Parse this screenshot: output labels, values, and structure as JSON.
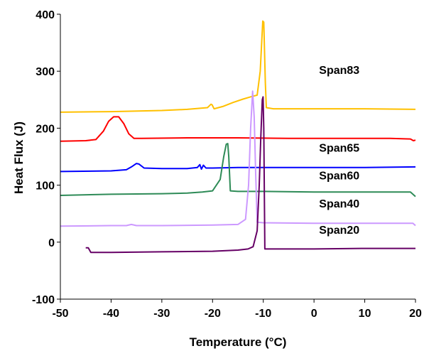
{
  "chart_data": {
    "type": "line",
    "xlabel": "Temperature (°C)",
    "ylabel": "Heat Flux  (J)",
    "xlim": [
      -50,
      20
    ],
    "ylim": [
      -100,
      400
    ],
    "xticks": [
      -50,
      -40,
      -30,
      -20,
      -10,
      0,
      10,
      20
    ],
    "yticks": [
      -100,
      0,
      100,
      200,
      300,
      400
    ],
    "grid": false,
    "legend": "labels-beside-curves",
    "series": [
      {
        "name": "Span83",
        "color": "#FFC000",
        "points": [
          [
            -50,
            228
          ],
          [
            -40,
            229
          ],
          [
            -30,
            231
          ],
          [
            -25,
            233
          ],
          [
            -21,
            236
          ],
          [
            -20.3,
            242
          ],
          [
            -20.1,
            241
          ],
          [
            -19.7,
            234
          ],
          [
            -18,
            238
          ],
          [
            -16,
            245
          ],
          [
            -14,
            251
          ],
          [
            -12.5,
            255
          ],
          [
            -11.2,
            258
          ],
          [
            -10.6,
            300
          ],
          [
            -10.1,
            388
          ],
          [
            -9.9,
            386
          ],
          [
            -9.6,
            280
          ],
          [
            -9.4,
            236
          ],
          [
            -8,
            234
          ],
          [
            0,
            234
          ],
          [
            10,
            234
          ],
          [
            20,
            233
          ]
        ]
      },
      {
        "name": "",
        "color": "#FF0000",
        "points": [
          [
            -50,
            177
          ],
          [
            -45,
            178
          ],
          [
            -43,
            180
          ],
          [
            -41.5,
            195
          ],
          [
            -40.5,
            212
          ],
          [
            -39.5,
            220
          ],
          [
            -38.5,
            220
          ],
          [
            -37.5,
            208
          ],
          [
            -36.5,
            190
          ],
          [
            -35.5,
            182
          ],
          [
            -34,
            182
          ],
          [
            -25,
            183
          ],
          [
            -15,
            183
          ],
          [
            -5,
            182
          ],
          [
            5,
            182
          ],
          [
            15,
            182
          ],
          [
            19,
            181
          ],
          [
            19.6,
            178
          ],
          [
            20,
            179
          ]
        ]
      },
      {
        "name": "Span65",
        "color": "#0000FF",
        "points": [
          [
            -50,
            124
          ],
          [
            -40,
            125
          ],
          [
            -37,
            127
          ],
          [
            -36,
            132
          ],
          [
            -35,
            138
          ],
          [
            -34.5,
            137
          ],
          [
            -33.5,
            130
          ],
          [
            -30,
            129
          ],
          [
            -25,
            129
          ],
          [
            -23,
            131
          ],
          [
            -22.5,
            136
          ],
          [
            -22.2,
            128
          ],
          [
            -21.8,
            135
          ],
          [
            -21.3,
            130
          ],
          [
            -20,
            130
          ],
          [
            -15,
            131
          ],
          [
            -10,
            131
          ],
          [
            -5,
            131
          ],
          [
            0,
            131
          ],
          [
            10,
            131
          ],
          [
            20,
            132
          ]
        ]
      },
      {
        "name": "Span60",
        "color": "#2E8B57",
        "points": [
          [
            -50,
            82
          ],
          [
            -40,
            84
          ],
          [
            -30,
            85
          ],
          [
            -25,
            86
          ],
          [
            -22,
            88
          ],
          [
            -20,
            90
          ],
          [
            -18.5,
            110
          ],
          [
            -17.8,
            150
          ],
          [
            -17.3,
            172
          ],
          [
            -17,
            173
          ],
          [
            -16.8,
            150
          ],
          [
            -16.5,
            90
          ],
          [
            -15,
            89
          ],
          [
            -10,
            89
          ],
          [
            0,
            88
          ],
          [
            10,
            88
          ],
          [
            19,
            88
          ],
          [
            19.5,
            84
          ],
          [
            20,
            80
          ]
        ]
      },
      {
        "name": "Span40",
        "color": "#CC99FF",
        "points": [
          [
            -50,
            28
          ],
          [
            -40,
            29
          ],
          [
            -37,
            29
          ],
          [
            -36,
            31
          ],
          [
            -35,
            29
          ],
          [
            -30,
            29
          ],
          [
            -20,
            30
          ],
          [
            -15,
            31
          ],
          [
            -13.5,
            40
          ],
          [
            -12.9,
            100
          ],
          [
            -12.5,
            200
          ],
          [
            -12.1,
            265
          ],
          [
            -11.8,
            220
          ],
          [
            -11.5,
            120
          ],
          [
            -11.2,
            35
          ],
          [
            -10,
            34
          ],
          [
            0,
            33
          ],
          [
            10,
            33
          ],
          [
            18,
            33
          ],
          [
            19.5,
            33
          ],
          [
            20,
            29
          ]
        ]
      },
      {
        "name": "Span20",
        "color": "#660066",
        "points": [
          [
            -45,
            -10
          ],
          [
            -44.5,
            -10
          ],
          [
            -44,
            -18
          ],
          [
            -40,
            -18
          ],
          [
            -30,
            -17
          ],
          [
            -20,
            -16
          ],
          [
            -15,
            -14
          ],
          [
            -13,
            -12
          ],
          [
            -12,
            -8
          ],
          [
            -11.2,
            20
          ],
          [
            -10.8,
            100
          ],
          [
            -10.5,
            180
          ],
          [
            -10.2,
            250
          ],
          [
            -10.05,
            255
          ],
          [
            -9.9,
            200
          ],
          [
            -9.7,
            -12
          ],
          [
            -5,
            -12
          ],
          [
            0,
            -12
          ],
          [
            10,
            -11
          ],
          [
            20,
            -11
          ]
        ]
      }
    ],
    "series_labels": [
      {
        "text": "Span83",
        "x": 1,
        "y": 295
      },
      {
        "text": "Span65",
        "x": 1,
        "y": 159
      },
      {
        "text": "Span60",
        "x": 1,
        "y": 110
      },
      {
        "text": "Span40",
        "x": 1,
        "y": 61
      },
      {
        "text": "Span20",
        "x": 1,
        "y": 15
      }
    ]
  }
}
